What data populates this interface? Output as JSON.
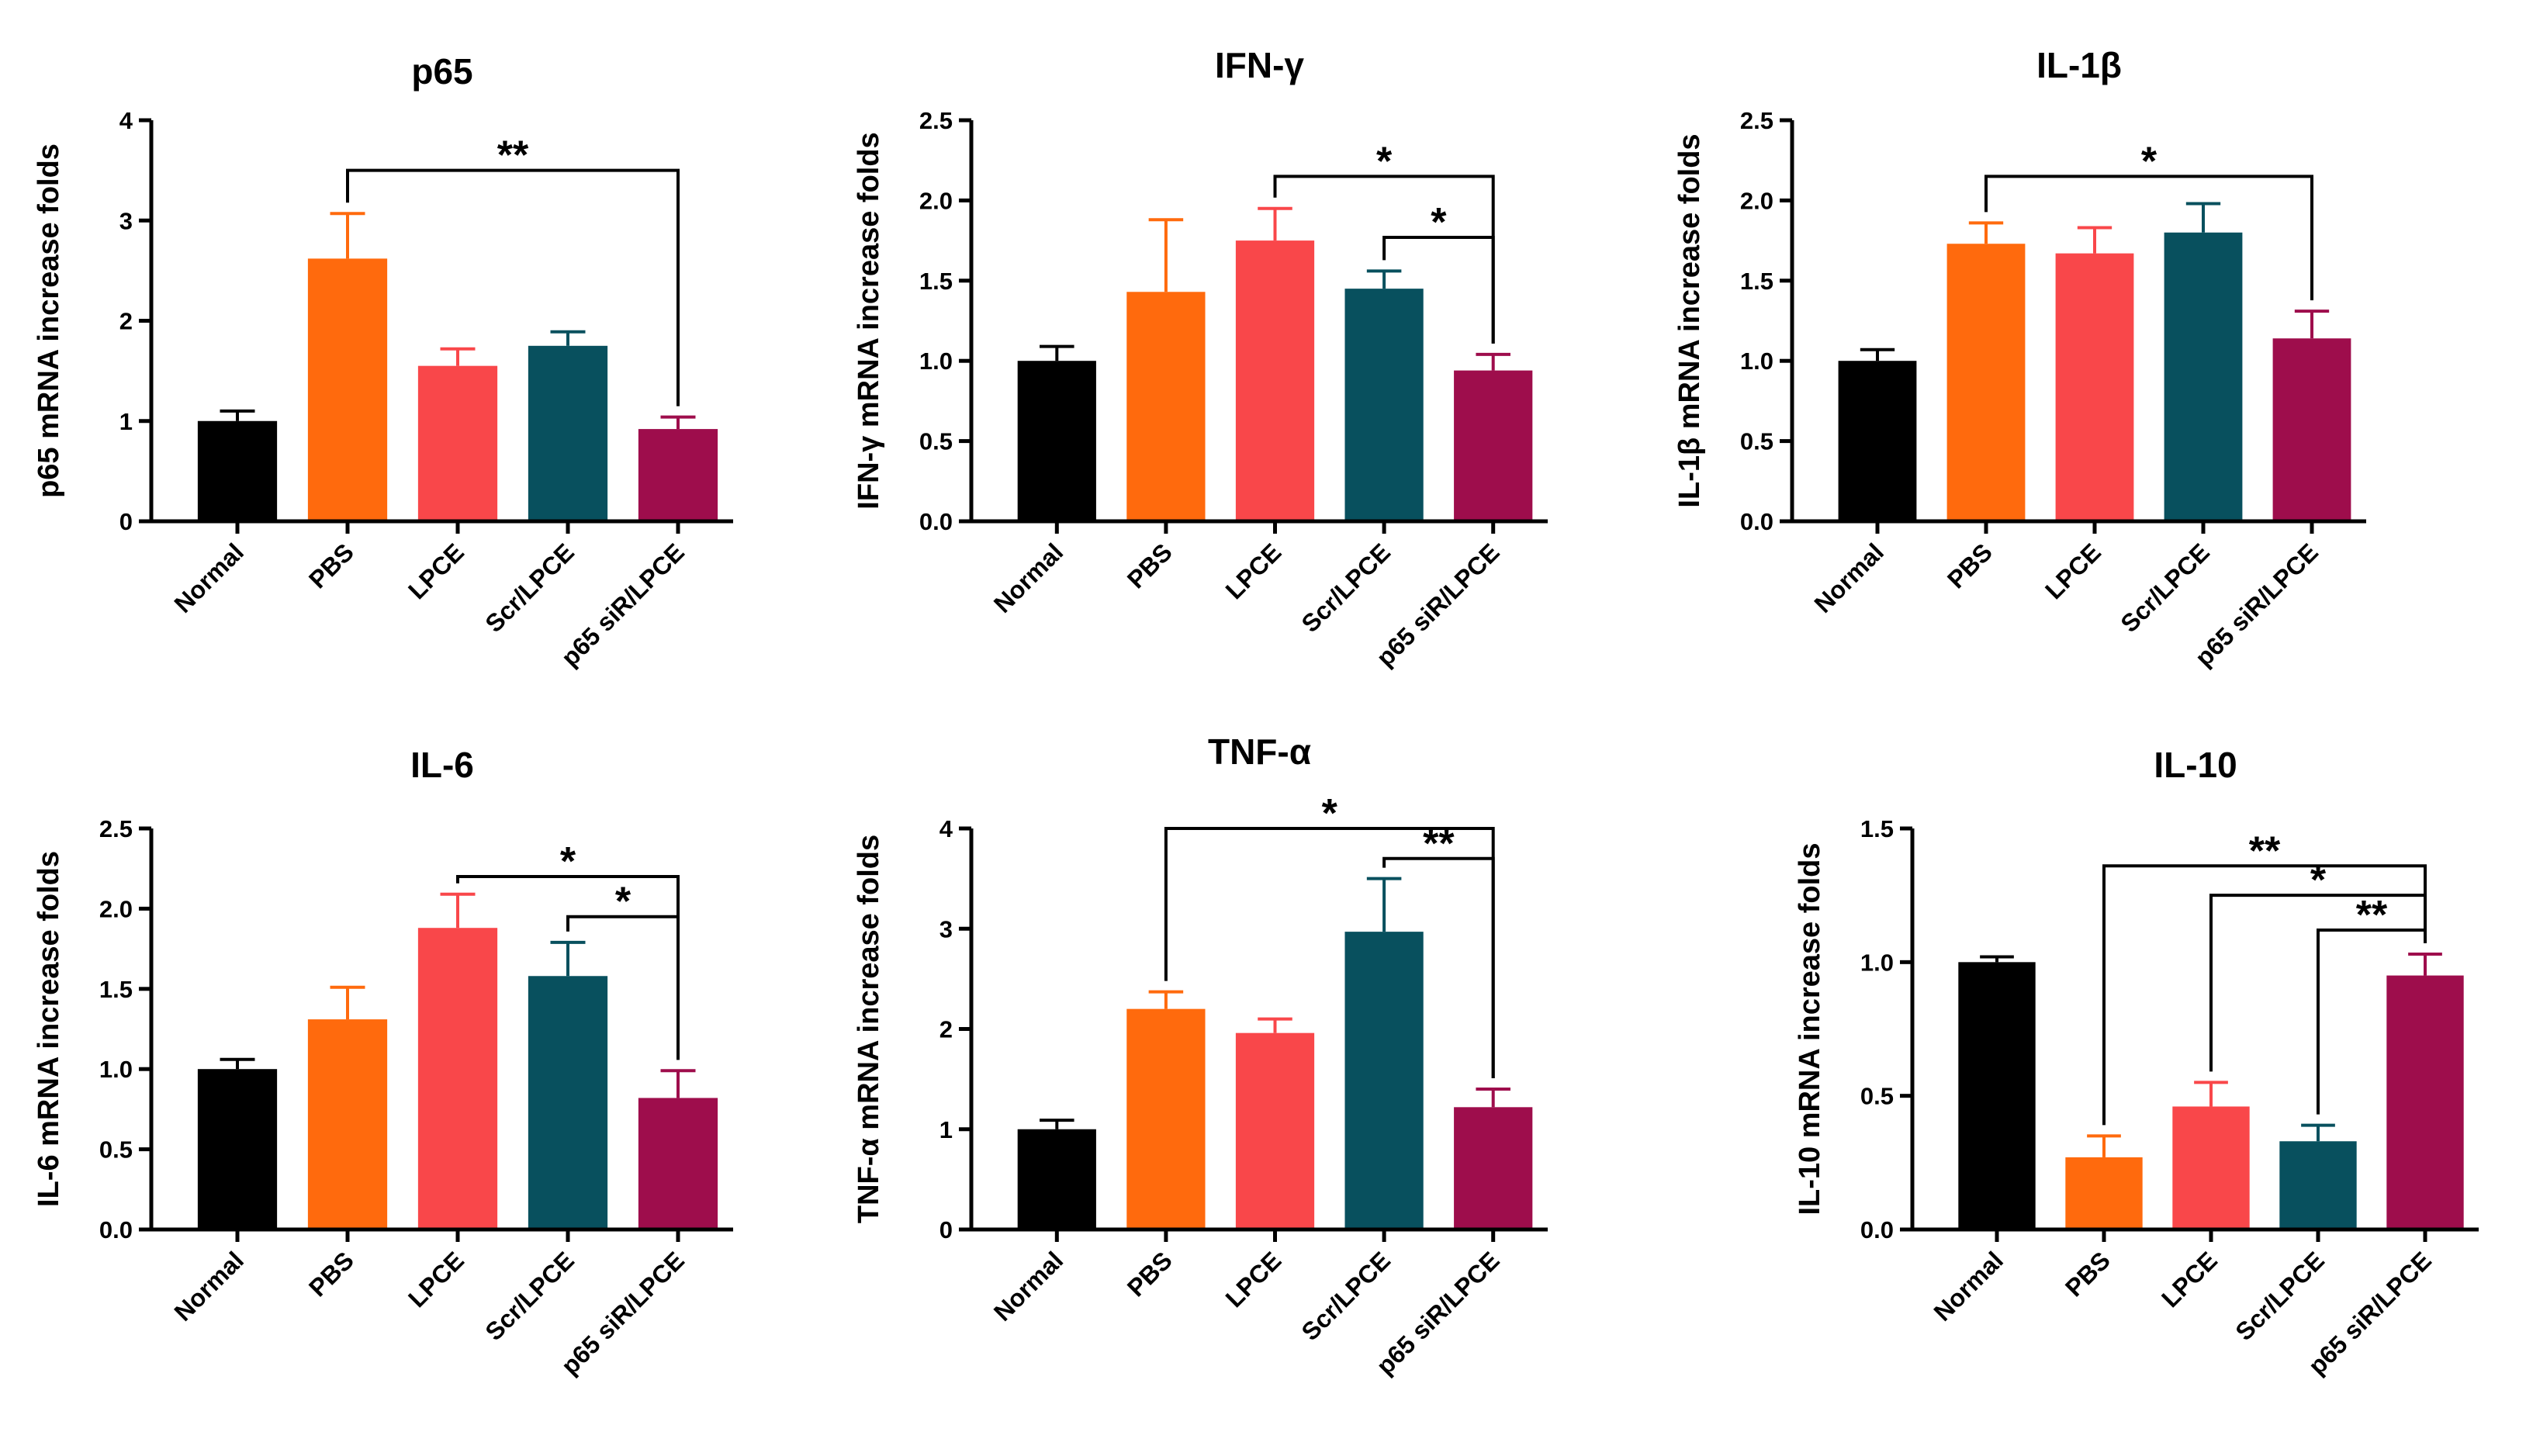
{
  "colors": {
    "Normal": "#000000",
    "PBS": "#ff6a0d",
    "LPCE": "#f9474a",
    "Scr/LPCE": "#08505e",
    "p65 siR/LPCE": "#9e0d4c"
  },
  "chart_data": [
    {
      "type": "bar",
      "title": "p65",
      "ylabel": "p65 mRNA increase folds",
      "categories": [
        "Normal",
        "PBS",
        "LPCE",
        "Scr/LPCE",
        "p65 siR/LPCE"
      ],
      "values": [
        1.0,
        2.62,
        1.55,
        1.75,
        0.92
      ],
      "errors": [
        0.1,
        0.45,
        0.17,
        0.14,
        0.12
      ],
      "ylim": [
        0,
        4
      ],
      "yticks": [
        "0",
        "1",
        "2",
        "3",
        "4"
      ],
      "significance": [
        {
          "from": 1,
          "to": 4,
          "label": "**",
          "y": 3.5
        }
      ]
    },
    {
      "type": "bar",
      "title": "IFN-γ",
      "ylabel": "IFN-γ mRNA increase folds",
      "categories": [
        "Normal",
        "PBS",
        "LPCE",
        "Scr/LPCE",
        "p65 siR/LPCE"
      ],
      "values": [
        1.0,
        1.43,
        1.75,
        1.45,
        0.94
      ],
      "errors": [
        0.09,
        0.45,
        0.2,
        0.11,
        0.1
      ],
      "ylim": [
        0,
        2.5
      ],
      "yticks": [
        "0.0",
        "0.5",
        "1.0",
        "1.5",
        "2.0",
        "2.5"
      ],
      "significance": [
        {
          "from": 2,
          "to": 4,
          "label": "*",
          "y": 2.15
        },
        {
          "from": 3,
          "to": 4,
          "label": "*",
          "y": 1.77
        }
      ]
    },
    {
      "type": "bar",
      "title": "IL-1β",
      "ylabel": "IL-1β mRNA increase folds",
      "categories": [
        "Normal",
        "PBS",
        "LPCE",
        "Scr/LPCE",
        "p65 siR/LPCE"
      ],
      "values": [
        1.0,
        1.73,
        1.67,
        1.8,
        1.14
      ],
      "errors": [
        0.07,
        0.13,
        0.16,
        0.18,
        0.17
      ],
      "ylim": [
        0,
        2.5
      ],
      "yticks": [
        "0.0",
        "0.5",
        "1.0",
        "1.5",
        "2.0",
        "2.5"
      ],
      "significance": [
        {
          "from": 1,
          "to": 4,
          "label": "*",
          "y": 2.15
        }
      ]
    },
    {
      "type": "bar",
      "title": "IL-6",
      "ylabel": "IL-6 mRNA increase folds",
      "categories": [
        "Normal",
        "PBS",
        "LPCE",
        "Scr/LPCE",
        "p65 siR/LPCE"
      ],
      "values": [
        1.0,
        1.31,
        1.88,
        1.58,
        0.82
      ],
      "errors": [
        0.06,
        0.2,
        0.21,
        0.21,
        0.17
      ],
      "ylim": [
        0,
        2.5
      ],
      "yticks": [
        "0.0",
        "0.5",
        "1.0",
        "1.5",
        "2.0",
        "2.5"
      ],
      "significance": [
        {
          "from": 2,
          "to": 4,
          "label": "*",
          "y": 2.2
        },
        {
          "from": 3,
          "to": 4,
          "label": "*",
          "y": 1.95
        }
      ]
    },
    {
      "type": "bar",
      "title": "TNF-α",
      "ylabel": "TNF-α mRNA increase folds",
      "categories": [
        "Normal",
        "PBS",
        "LPCE",
        "Scr/LPCE",
        "p65 siR/LPCE"
      ],
      "values": [
        1.0,
        2.2,
        1.96,
        2.97,
        1.22
      ],
      "errors": [
        0.09,
        0.17,
        0.14,
        0.53,
        0.18
      ],
      "ylim": [
        0,
        4
      ],
      "yticks": [
        "0",
        "1",
        "2",
        "3",
        "4"
      ],
      "significance": [
        {
          "from": 1,
          "to": 4,
          "label": "*",
          "y": 4.0
        },
        {
          "from": 3,
          "to": 4,
          "label": "**",
          "y": 3.7
        }
      ]
    },
    {
      "type": "bar",
      "title": "IL-10",
      "ylabel": "IL-10 mRNA increase folds",
      "categories": [
        "Normal",
        "PBS",
        "LPCE",
        "Scr/LPCE",
        "p65 siR/LPCE"
      ],
      "values": [
        1.0,
        0.27,
        0.46,
        0.33,
        0.95
      ],
      "errors": [
        0.02,
        0.08,
        0.09,
        0.06,
        0.08
      ],
      "ylim": [
        0,
        1.5
      ],
      "yticks": [
        "0.0",
        "0.5",
        "1.0",
        "1.5"
      ],
      "significance": [
        {
          "from": 1,
          "to": 4,
          "label": "**",
          "y": 1.36
        },
        {
          "from": 2,
          "to": 4,
          "label": "*",
          "y": 1.25
        },
        {
          "from": 3,
          "to": 4,
          "label": "**",
          "y": 1.12
        }
      ]
    }
  ]
}
